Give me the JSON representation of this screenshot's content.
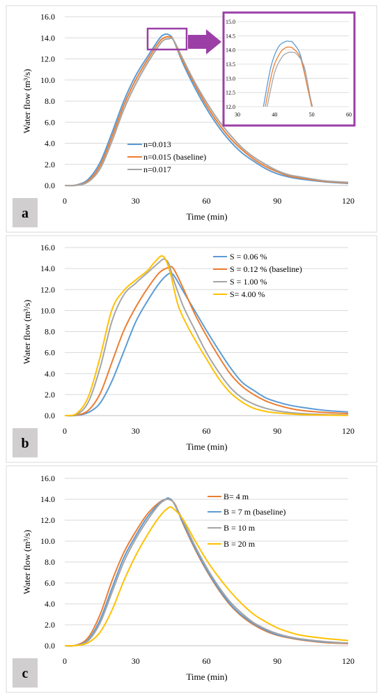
{
  "colors": {
    "n013": "#5B9BD5",
    "n015": "#ED7D31",
    "n017": "#A5A5A5",
    "yellow": "#FFC000",
    "inset_frame": "#9B3FA6",
    "panel_border": "#D9D9D9",
    "grid": "#D9D9D9",
    "label_bg": "#D0CECE"
  },
  "panels": [
    {
      "label": "a",
      "xlabel": "Time (min)",
      "ylabel": "Water flow (m³/s)",
      "xticks": [
        "0",
        "30",
        "60",
        "90",
        "120"
      ],
      "yticks": [
        "0.0",
        "2.0",
        "4.0",
        "6.0",
        "8.0",
        "10.0",
        "12.0",
        "14.0",
        "16.0"
      ],
      "legend": [
        "n=0.013",
        "n=0.015 (baseline)",
        "n=0.017"
      ],
      "inset": {
        "xticks": [
          "30",
          "40",
          "50",
          "60"
        ],
        "yticks": [
          "12.0",
          "12.5",
          "13.0",
          "13.5",
          "14.0",
          "14.5",
          "15.0"
        ]
      }
    },
    {
      "label": "b",
      "xlabel": "Time (min)",
      "ylabel": "Water flow (m³/s)",
      "xticks": [
        "0",
        "30",
        "60",
        "90",
        "120"
      ],
      "yticks": [
        "0.0",
        "2.0",
        "4.0",
        "6.0",
        "8.0",
        "10.0",
        "12.0",
        "14.0",
        "16.0"
      ],
      "legend": [
        "S = 0.06 %",
        "S = 0.12 % (baseline)",
        "S = 1.00 %",
        "S= 4.00 %"
      ]
    },
    {
      "label": "c",
      "xlabel": "Time (min)",
      "ylabel": "Water flow (m³/s)",
      "xticks": [
        "0",
        "30",
        "60",
        "90",
        "120"
      ],
      "yticks": [
        "0.0",
        "2.0",
        "4.0",
        "6.0",
        "8.0",
        "10.0",
        "12.0",
        "14.0",
        "16.0"
      ],
      "legend": [
        "B= 4 m",
        "B = 7 m (baseline)",
        "B = 10 m",
        "B = 20 m"
      ]
    }
  ],
  "chart_data": [
    {
      "type": "line",
      "xlabel": "Time (min)",
      "ylabel": "Water flow (m³/s)",
      "xlim": [
        0,
        120
      ],
      "ylim": [
        0,
        16
      ],
      "grid": "horizontal",
      "legend_position": "center-left",
      "series": [
        {
          "name": "n=0.013",
          "color": "#5B9BD5",
          "x": [
            0,
            5,
            10,
            15,
            20,
            25,
            30,
            35,
            40,
            42,
            44,
            46,
            50,
            55,
            60,
            65,
            70,
            75,
            80,
            85,
            90,
            95,
            100,
            110,
            120
          ],
          "y": [
            0,
            0.05,
            0.6,
            2.2,
            5.0,
            8.0,
            10.4,
            12.2,
            13.9,
            14.3,
            14.3,
            13.8,
            11.6,
            9.3,
            7.3,
            5.6,
            4.2,
            3.1,
            2.3,
            1.6,
            1.1,
            0.8,
            0.6,
            0.35,
            0.2
          ]
        },
        {
          "name": "n=0.015 (baseline)",
          "color": "#ED7D31",
          "x": [
            0,
            5,
            10,
            15,
            20,
            25,
            30,
            35,
            40,
            42,
            44,
            46,
            50,
            55,
            60,
            65,
            70,
            75,
            80,
            85,
            90,
            95,
            100,
            110,
            120
          ],
          "y": [
            0,
            0.03,
            0.45,
            1.9,
            4.6,
            7.6,
            10.0,
            11.9,
            13.6,
            14.0,
            14.1,
            13.8,
            11.8,
            9.6,
            7.6,
            5.9,
            4.5,
            3.4,
            2.5,
            1.8,
            1.3,
            0.9,
            0.7,
            0.4,
            0.25
          ]
        },
        {
          "name": "n=0.017",
          "color": "#A5A5A5",
          "x": [
            0,
            5,
            10,
            15,
            20,
            25,
            30,
            35,
            40,
            42,
            44,
            46,
            50,
            55,
            60,
            65,
            70,
            75,
            80,
            85,
            90,
            95,
            100,
            110,
            120
          ],
          "y": [
            0,
            0.02,
            0.35,
            1.6,
            4.2,
            7.2,
            9.6,
            11.6,
            13.3,
            13.8,
            13.9,
            13.8,
            12.0,
            9.8,
            7.9,
            6.2,
            4.8,
            3.6,
            2.7,
            2.0,
            1.4,
            1.0,
            0.8,
            0.45,
            0.3
          ]
        }
      ],
      "inset": {
        "xlim": [
          30,
          60
        ],
        "ylim": [
          12,
          15
        ],
        "series": [
          {
            "name": "n=0.013",
            "x": [
              37,
              39,
              41,
              43,
              44,
              45,
              47,
              49,
              50
            ],
            "y": [
              12.0,
              13.4,
              14.1,
              14.3,
              14.3,
              14.25,
              13.8,
              12.6,
              12.0
            ]
          },
          {
            "name": "n=0.015 (baseline)",
            "x": [
              37.5,
              39.5,
              41.5,
              43,
              44,
              45,
              47,
              49,
              50
            ],
            "y": [
              12.0,
              13.3,
              13.9,
              14.08,
              14.1,
              14.05,
              13.7,
              12.6,
              12.0
            ]
          },
          {
            "name": "n=0.017",
            "x": [
              38,
              40,
              42,
              43.5,
              44.5,
              46,
              48,
              49.5,
              50.2
            ],
            "y": [
              12.0,
              13.2,
              13.75,
              13.9,
              13.92,
              13.85,
              13.4,
              12.4,
              12.0
            ]
          }
        ]
      }
    },
    {
      "type": "line",
      "xlabel": "Time (min)",
      "ylabel": "Water flow (m³/s)",
      "xlim": [
        0,
        120
      ],
      "ylim": [
        0,
        16
      ],
      "grid": "horizontal",
      "legend_position": "top-right",
      "series": [
        {
          "name": "S = 0.06 %",
          "color": "#5B9BD5",
          "x": [
            0,
            5,
            10,
            15,
            20,
            25,
            30,
            35,
            40,
            44,
            46,
            50,
            55,
            60,
            65,
            70,
            75,
            80,
            85,
            90,
            95,
            100,
            110,
            120
          ],
          "y": [
            0,
            0.02,
            0.3,
            1.2,
            3.3,
            6.1,
            8.9,
            10.9,
            12.6,
            13.5,
            13.4,
            11.9,
            10.0,
            8.1,
            6.3,
            4.6,
            3.2,
            2.4,
            1.7,
            1.3,
            1.0,
            0.8,
            0.5,
            0.35
          ]
        },
        {
          "name": "S = 0.12 % (baseline)",
          "color": "#ED7D31",
          "x": [
            0,
            5,
            10,
            15,
            20,
            25,
            30,
            35,
            40,
            44,
            46,
            50,
            55,
            60,
            65,
            70,
            75,
            80,
            85,
            90,
            95,
            100,
            110,
            120
          ],
          "y": [
            0,
            0.04,
            0.5,
            2.1,
            5.1,
            8.1,
            10.3,
            12.1,
            13.6,
            14.1,
            14.0,
            12.2,
            9.7,
            7.6,
            5.7,
            4.0,
            2.8,
            2.0,
            1.4,
            1.0,
            0.7,
            0.5,
            0.3,
            0.2
          ]
        },
        {
          "name": "S = 1.00 %",
          "color": "#A5A5A5",
          "x": [
            0,
            5,
            10,
            15,
            20,
            25,
            30,
            35,
            40,
            42,
            44,
            46,
            50,
            55,
            60,
            65,
            70,
            75,
            80,
            85,
            90,
            95,
            100,
            110,
            120
          ],
          "y": [
            0,
            0.1,
            1.3,
            4.6,
            9.0,
            11.5,
            12.6,
            13.6,
            14.6,
            14.9,
            14.5,
            13.0,
            10.5,
            8.2,
            6.0,
            4.2,
            2.7,
            1.7,
            1.1,
            0.7,
            0.45,
            0.3,
            0.2,
            0.1,
            0.05
          ]
        },
        {
          "name": "S= 4.00 %",
          "color": "#FFC000",
          "x": [
            0,
            5,
            10,
            15,
            20,
            25,
            30,
            35,
            38,
            41,
            43,
            45,
            48,
            52,
            56,
            60,
            65,
            70,
            75,
            80,
            85,
            90,
            100,
            110,
            120
          ],
          "y": [
            0,
            0.2,
            1.8,
            5.6,
            10.1,
            11.9,
            12.9,
            13.8,
            14.6,
            15.2,
            14.7,
            13.3,
            10.5,
            8.5,
            6.9,
            5.4,
            3.6,
            2.2,
            1.3,
            0.7,
            0.4,
            0.25,
            0.1,
            0.05,
            0.02
          ]
        }
      ]
    },
    {
      "type": "line",
      "xlabel": "Time (min)",
      "ylabel": "Water flow (m³/s)",
      "xlim": [
        0,
        120
      ],
      "ylim": [
        0,
        16
      ],
      "grid": "horizontal",
      "legend_position": "top-right",
      "series": [
        {
          "name": "B= 4 m",
          "color": "#ED7D31",
          "x": [
            0,
            5,
            10,
            15,
            20,
            25,
            30,
            35,
            40,
            43,
            45,
            47,
            50,
            55,
            60,
            65,
            70,
            75,
            80,
            85,
            90,
            95,
            100,
            110,
            120
          ],
          "y": [
            0,
            0.06,
            0.8,
            3.0,
            6.2,
            8.9,
            10.9,
            12.6,
            13.7,
            14.0,
            13.9,
            13.4,
            11.7,
            9.3,
            7.2,
            5.4,
            3.9,
            2.8,
            2.0,
            1.4,
            1.0,
            0.75,
            0.55,
            0.3,
            0.2
          ]
        },
        {
          "name": "B = 7 m (baseline)",
          "color": "#5B9BD5",
          "x": [
            0,
            5,
            10,
            15,
            20,
            25,
            30,
            35,
            40,
            43,
            44,
            46,
            50,
            55,
            60,
            65,
            70,
            75,
            80,
            85,
            90,
            95,
            100,
            110,
            120
          ],
          "y": [
            0,
            0.04,
            0.6,
            2.5,
            5.5,
            8.4,
            10.5,
            12.3,
            13.6,
            14.05,
            14.1,
            13.7,
            11.8,
            9.4,
            7.3,
            5.5,
            4.0,
            2.9,
            2.1,
            1.5,
            1.05,
            0.8,
            0.6,
            0.35,
            0.25
          ]
        },
        {
          "name": "B = 10 m",
          "color": "#A5A5A5",
          "x": [
            0,
            5,
            10,
            15,
            20,
            25,
            30,
            35,
            40,
            43,
            44,
            46,
            50,
            55,
            60,
            65,
            70,
            75,
            80,
            85,
            90,
            95,
            100,
            110,
            120
          ],
          "y": [
            0,
            0.03,
            0.5,
            2.2,
            5.1,
            8.0,
            10.2,
            12.0,
            13.5,
            14.0,
            14.0,
            13.7,
            12.0,
            9.6,
            7.5,
            5.7,
            4.2,
            3.1,
            2.2,
            1.6,
            1.15,
            0.85,
            0.65,
            0.4,
            0.25
          ]
        },
        {
          "name": "B = 20 m",
          "color": "#FFC000",
          "x": [
            0,
            5,
            10,
            15,
            20,
            25,
            30,
            35,
            40,
            44,
            46,
            50,
            55,
            60,
            65,
            70,
            75,
            80,
            85,
            90,
            95,
            100,
            110,
            120
          ],
          "y": [
            0,
            0.02,
            0.3,
            1.3,
            3.4,
            6.2,
            8.6,
            10.6,
            12.3,
            13.2,
            13.1,
            12.1,
            10.1,
            8.2,
            6.6,
            5.2,
            4.0,
            3.0,
            2.3,
            1.7,
            1.3,
            1.0,
            0.7,
            0.5
          ]
        }
      ]
    }
  ]
}
